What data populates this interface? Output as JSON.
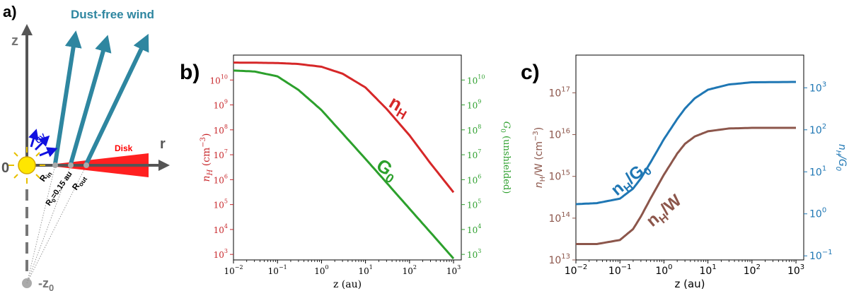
{
  "panel_a": {
    "panel_label": "a)",
    "wind_label": "Dust-free wind",
    "z_axis_label": "z",
    "r_axis_label": "r",
    "origin_label": "0",
    "disk_label": "Disk",
    "uv_label": "UV",
    "r_in_label": "R",
    "r_in_sub": "in",
    "r0_label": "R",
    "r0_sub": "0",
    "r0_value": "=0.15 au",
    "r_out_label": "R",
    "r_out_sub": "out",
    "z0_label": "-z",
    "z0_sub": "0",
    "colors": {
      "wind": "#2e86a0",
      "uv": "#1010e0",
      "disk": "#ff0000",
      "axis": "#555555",
      "star": "#ffe000"
    }
  },
  "chart_data": [
    {
      "type": "line",
      "panel_label": "b)",
      "xlabel": "z (au)",
      "x_scale": "log",
      "xlim": [
        0.01,
        1500
      ],
      "x_ticks": [
        "10",
        "10",
        "10",
        "10",
        "10",
        "10"
      ],
      "x_tick_exponents": [
        "−2",
        "−1",
        "0",
        "1",
        "2",
        "3"
      ],
      "y_left": {
        "label": "n",
        "label_sub": "H",
        "label_unit": "(cm",
        "label_unit_exp": "−3",
        "label_unit_close": ")",
        "scale": "log",
        "ylim": [
          600,
          100000000000
        ],
        "color": "#c8282c",
        "ticks": [
          "10",
          "10",
          "10",
          "10",
          "10",
          "10",
          "10",
          "10"
        ],
        "tick_exponents": [
          "3",
          "4",
          "5",
          "6",
          "7",
          "8",
          "9",
          "10"
        ]
      },
      "y_right": {
        "label": "G",
        "label_sub": "0",
        "label_rest": "(unshielded)",
        "scale": "log",
        "ylim": [
          600,
          100000000000
        ],
        "color": "#2ea02e",
        "ticks": [
          "10",
          "10",
          "10",
          "10",
          "10",
          "10",
          "10",
          "10"
        ],
        "tick_exponents": [
          "3",
          "4",
          "5",
          "6",
          "7",
          "8",
          "9",
          "10"
        ]
      },
      "series": [
        {
          "name": "n",
          "name_sub": "H",
          "color": "#d62728",
          "axis": "left",
          "x": [
            0.01,
            0.03,
            0.1,
            0.3,
            1,
            3,
            10,
            30,
            100,
            300,
            1000
          ],
          "y": [
            50000000000,
            49500000000,
            48000000000,
            44000000000,
            34000000000,
            18000000000,
            5000000000,
            700000000,
            60000000,
            4500000,
            310000
          ]
        },
        {
          "name": "G",
          "name_sub": "0",
          "color": "#2ca02c",
          "axis": "right",
          "x": [
            0.01,
            0.03,
            0.1,
            0.3,
            1,
            3,
            10,
            30,
            100,
            300,
            1000
          ],
          "y": [
            24000000000,
            22000000000,
            14000000000,
            4000000000,
            620000000,
            72000000,
            6800000,
            760000,
            68000,
            7600,
            680
          ]
        }
      ]
    },
    {
      "type": "line",
      "panel_label": "c)",
      "xlabel": "z (au)",
      "x_scale": "log",
      "xlim": [
        0.01,
        1500
      ],
      "x_ticks": [
        "10",
        "10",
        "10",
        "10",
        "10",
        "10"
      ],
      "x_tick_exponents": [
        "−2",
        "−1",
        "0",
        "1",
        "2",
        "3"
      ],
      "y_left": {
        "label": "n",
        "label_sub": "H",
        "label_rest": "/W (cm",
        "label_unit_exp": "−3",
        "label_unit_close": ")",
        "scale": "log",
        "ylim": [
          10000000000000,
          800000000000000000
        ],
        "color": "#8c564b",
        "ticks": [
          "10",
          "10",
          "10",
          "10",
          "10"
        ],
        "tick_exponents": [
          "13",
          "14",
          "15",
          "16",
          "17"
        ]
      },
      "y_right": {
        "label": "n",
        "label_sub": "H",
        "label_rest": "/G",
        "label_sub2": "0",
        "scale": "log",
        "ylim": [
          0.08,
          6000
        ],
        "color": "#1f77b4",
        "ticks": [
          "10",
          "10",
          "10",
          "10",
          "10"
        ],
        "tick_exponents": [
          "−1",
          "0",
          "1",
          "2",
          "3"
        ]
      },
      "series": [
        {
          "name": "n",
          "name_sub": "H",
          "name_rest": "/W",
          "color": "#8c564b",
          "axis": "left",
          "x": [
            0.01,
            0.03,
            0.1,
            0.2,
            0.3,
            0.5,
            1,
            2,
            3,
            5,
            10,
            30,
            100,
            1000
          ],
          "y": [
            24000000000000,
            24000000000000,
            30000000000000,
            55000000000000,
            110000000000000,
            300000000000000,
            1100000000000000,
            3500000000000000,
            6000000000000000,
            9000000000000000,
            12000000000000000,
            14000000000000000,
            14500000000000000,
            14500000000000000
          ]
        },
        {
          "name": "n",
          "name_sub": "H",
          "name_rest": "/G",
          "name_sub2": "0",
          "color": "#1f77b4",
          "axis": "right",
          "x": [
            0.01,
            0.03,
            0.1,
            0.2,
            0.3,
            0.5,
            1,
            2,
            3,
            5,
            10,
            30,
            100,
            1000
          ],
          "y": [
            1.7,
            1.8,
            2.3,
            4,
            7,
            17,
            60,
            180,
            320,
            560,
            900,
            1200,
            1350,
            1380
          ]
        }
      ]
    }
  ]
}
